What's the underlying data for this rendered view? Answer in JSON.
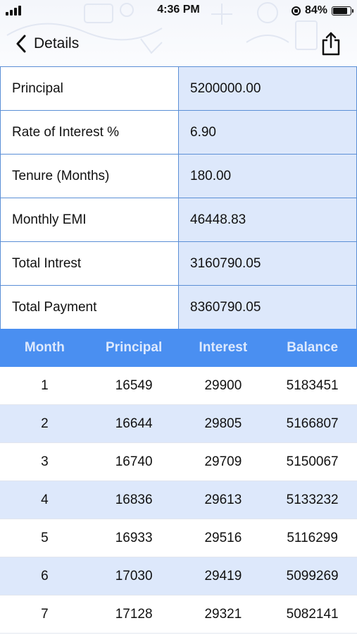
{
  "status_bar": {
    "time": "4:36 PM",
    "battery_percent": "84%",
    "battery_level": 0.84
  },
  "nav": {
    "back_label": "Details",
    "back_icon": "chevron-left-icon",
    "share_icon": "share-icon"
  },
  "summary": [
    {
      "label": "Principal",
      "value": "5200000.00"
    },
    {
      "label": "Rate of Interest %",
      "value": "6.90"
    },
    {
      "label": "Tenure (Months)",
      "value": "180.00"
    },
    {
      "label": "Monthly EMI",
      "value": "46448.83"
    },
    {
      "label": "Total Intrest",
      "value": "3160790.05"
    },
    {
      "label": "Total Payment",
      "value": "8360790.05"
    }
  ],
  "schedule": {
    "columns": [
      "Month",
      "Principal",
      "Interest",
      "Balance"
    ],
    "rows": [
      [
        "1",
        "16549",
        "29900",
        "5183451"
      ],
      [
        "2",
        "16644",
        "29805",
        "5166807"
      ],
      [
        "3",
        "16740",
        "29709",
        "5150067"
      ],
      [
        "4",
        "16836",
        "29613",
        "5133232"
      ],
      [
        "5",
        "16933",
        "29516",
        "5116299"
      ],
      [
        "6",
        "17030",
        "29419",
        "5099269"
      ],
      [
        "7",
        "17128",
        "29321",
        "5082141"
      ]
    ]
  },
  "colors": {
    "accent": "#4a8ff1",
    "value_cell": "#dde8fb",
    "border": "#5b8fd6"
  }
}
